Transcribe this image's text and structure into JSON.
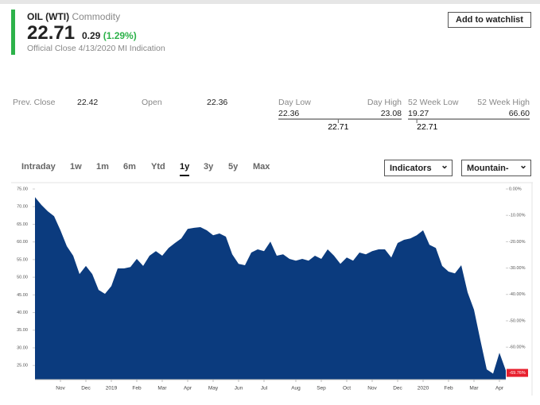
{
  "quote": {
    "symbol": "OIL (WTI)",
    "asset_class": "Commodity",
    "price": "22.71",
    "change": "0.29",
    "change_pct": "(1.29%)",
    "close_note": "Official Close 4/13/2020 MI Indication",
    "watchlist_button": "Add to watchlist"
  },
  "stats": {
    "prev_close": {
      "label": "Prev. Close",
      "value": "22.42"
    },
    "open": {
      "label": "Open",
      "value": "22.36"
    },
    "day_range": {
      "low_label": "Day Low",
      "high_label": "Day High",
      "low": "22.36",
      "high": "23.08",
      "current": "22.71"
    },
    "week52_range": {
      "low_label": "52 Week Low",
      "high_label": "52 Week High",
      "low": "19.27",
      "high": "66.60",
      "current": "22.71"
    }
  },
  "range_tabs": {
    "items": [
      "Intraday",
      "1w",
      "1m",
      "6m",
      "Ytd",
      "1y",
      "3y",
      "5y",
      "Max"
    ],
    "selected": 5
  },
  "dropdowns": [
    "Indicators",
    "Mountain-Cha"
  ],
  "chart_data": {
    "type": "area",
    "color": "#0b3b7e",
    "categories": [
      null,
      null,
      null,
      null,
      "Nov",
      null,
      null,
      null,
      "Dec",
      null,
      null,
      null,
      "2019",
      null,
      null,
      null,
      "Feb",
      null,
      null,
      null,
      "Mar",
      null,
      null,
      null,
      "Apr",
      null,
      null,
      null,
      "May",
      null,
      null,
      null,
      "Jun",
      null,
      null,
      null,
      "Jul",
      null,
      null,
      null,
      null,
      "Aug",
      null,
      null,
      null,
      "Sep",
      null,
      null,
      null,
      "Oct",
      null,
      null,
      null,
      "Nov",
      null,
      null,
      null,
      "Dec",
      null,
      null,
      null,
      "2020",
      null,
      null,
      null,
      "Feb",
      null,
      null,
      null,
      "Mar",
      null,
      null,
      null,
      "Apr",
      null
    ],
    "values": [
      72.7,
      70.5,
      68.7,
      67.3,
      63.3,
      58.8,
      56.1,
      50.9,
      53.2,
      50.9,
      46.4,
      45.3,
      47.5,
      52.5,
      52.5,
      52.9,
      55.2,
      53.2,
      56.1,
      57.4,
      56.1,
      58.3,
      59.7,
      61,
      63.7,
      64,
      64.2,
      63.3,
      61.9,
      62.4,
      61.5,
      56.5,
      53.8,
      53.4,
      57,
      57.9,
      57.4,
      60.1,
      56.1,
      56.5,
      55.2,
      54.7,
      55.2,
      54.7,
      56.1,
      55.2,
      57.9,
      56.1,
      53.8,
      55.6,
      54.7,
      57,
      56.5,
      57.4,
      57.9,
      57.9,
      55.6,
      59.7,
      60.6,
      61,
      61.9,
      63.3,
      59.2,
      58.3,
      53.2,
      51.6,
      51.1,
      53.4,
      45.7,
      40.8,
      32.2,
      23.9,
      22.7,
      28.6,
      23.6
    ],
    "ylim": [
      21,
      76.35
    ],
    "yticks": [
      {
        "value": 75,
        "label": "75.00"
      },
      {
        "value": 70,
        "label": "70.00"
      },
      {
        "value": 65,
        "label": "65.00"
      },
      {
        "value": 60,
        "label": "60.00"
      },
      {
        "value": 55,
        "label": "55.00"
      },
      {
        "value": 50,
        "label": "50.00"
      },
      {
        "value": 45,
        "label": "45.00"
      },
      {
        "value": 40,
        "label": "40.00"
      },
      {
        "value": 35,
        "label": "35.00"
      },
      {
        "value": 30,
        "label": "30.00"
      },
      {
        "value": 25,
        "label": "25.00"
      }
    ],
    "y2lim": [
      -72.3,
      1.8
    ],
    "y2ticks": [
      {
        "value": 0,
        "label": "0.00%"
      },
      {
        "value": -10,
        "label": "-10.00%"
      },
      {
        "value": -20,
        "label": "-20.00%"
      },
      {
        "value": -30,
        "label": "-30.00%"
      },
      {
        "value": -40,
        "label": "-40.00%"
      },
      {
        "value": -50,
        "label": "-50.00%"
      },
      {
        "value": -60,
        "label": "-60.00%"
      }
    ],
    "annotations": [
      {
        "value": -69.76,
        "label": "-69.76%",
        "axis": "y2",
        "color": "#e8202e"
      }
    ]
  }
}
